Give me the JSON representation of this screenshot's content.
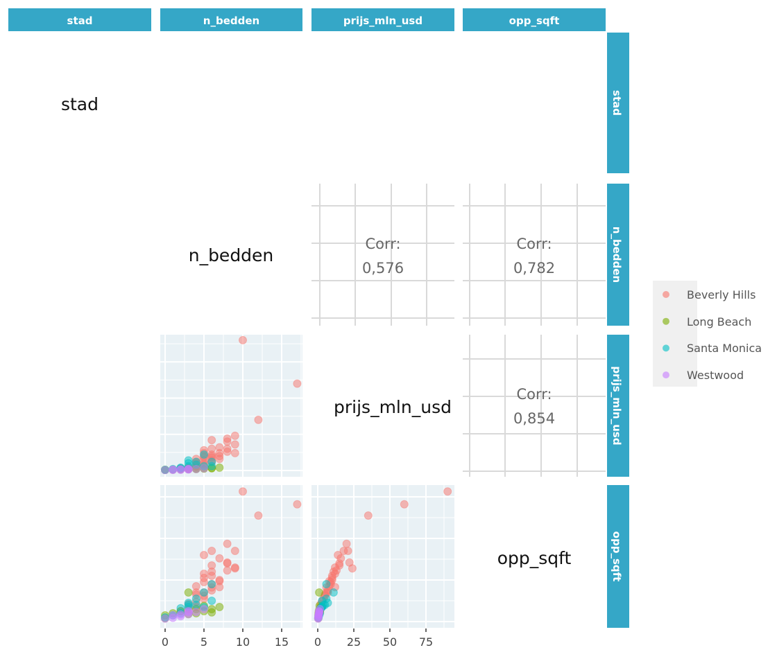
{
  "chart_data": {
    "type": "scatter",
    "layout": "pairs-matrix",
    "variables": [
      "stad",
      "n_bedden",
      "prijs_mln_usd",
      "opp_sqft"
    ],
    "diagonal_labels": [
      "stad",
      "n_bedden",
      "prijs_mln_usd",
      "opp_sqft"
    ],
    "correlations": [
      {
        "x": "prijs_mln_usd",
        "y": "n_bedden",
        "label": "Corr:",
        "value": "0,576"
      },
      {
        "x": "opp_sqft",
        "y": "n_bedden",
        "label": "Corr:",
        "value": "0,782"
      },
      {
        "x": "opp_sqft",
        "y": "prijs_mln_usd",
        "label": "Corr:",
        "value": "0,854"
      }
    ],
    "x_tick_labels": {
      "n_bedden": [
        "0",
        "5",
        "10",
        "15"
      ],
      "prijs_mln_usd": [
        "0",
        "25",
        "50",
        "75"
      ]
    },
    "grid": true,
    "legend": {
      "position": "right",
      "entries": [
        "Beverly Hills",
        "Long Beach",
        "Santa Monica",
        "Westwood"
      ]
    },
    "colors": {
      "Beverly Hills": "#F8766D",
      "Long Beach": "#7CAE00",
      "Santa Monica": "#00BFC4",
      "Westwood": "#C77CFF"
    },
    "point_fields": [
      "n_bedden",
      "prijs_mln_usd",
      "opp_sqft"
    ],
    "series": [
      {
        "name": "Beverly Hills",
        "points": [
          [
            10,
            90,
            31300
          ],
          [
            17,
            60,
            28200
          ],
          [
            12,
            35,
            25500
          ],
          [
            8,
            20,
            18700
          ],
          [
            6,
            21,
            17000
          ],
          [
            5,
            14,
            16000
          ],
          [
            9,
            18,
            17000
          ],
          [
            7,
            16,
            15200
          ],
          [
            8,
            22,
            14200
          ],
          [
            9,
            24,
            12800
          ],
          [
            8,
            13,
            12300
          ],
          [
            5,
            12,
            11500
          ],
          [
            6,
            11,
            12000
          ],
          [
            5,
            9,
            9500
          ],
          [
            6,
            10,
            11000
          ],
          [
            7,
            8,
            9700
          ],
          [
            4,
            8,
            8500
          ],
          [
            6,
            6,
            8200
          ],
          [
            7,
            12,
            8300
          ],
          [
            5,
            7,
            7000
          ],
          [
            4,
            5,
            6500
          ],
          [
            6,
            7,
            7500
          ],
          [
            4,
            6,
            7000
          ],
          [
            5,
            4,
            5500
          ],
          [
            3,
            2,
            4200
          ],
          [
            4,
            3,
            4800
          ],
          [
            5,
            5,
            6200
          ],
          [
            6,
            9,
            9000
          ],
          [
            7,
            10,
            10000
          ],
          [
            2,
            1.5,
            2500
          ],
          [
            3,
            1.8,
            3000
          ],
          [
            4,
            2.5,
            3500
          ],
          [
            8,
            15,
            14000
          ],
          [
            9,
            12,
            13000
          ],
          [
            6,
            15,
            13500
          ],
          [
            5,
            10,
            10500
          ]
        ]
      },
      {
        "name": "Long Beach",
        "points": [
          [
            0,
            0.5,
            1500
          ],
          [
            1,
            0.6,
            2000
          ],
          [
            2,
            0.8,
            2500
          ],
          [
            3,
            1,
            7000
          ],
          [
            4,
            1.2,
            3000
          ],
          [
            5,
            1.5,
            2500
          ],
          [
            6,
            1.8,
            3000
          ],
          [
            7,
            2,
            3500
          ],
          [
            0,
            0.4,
            800
          ],
          [
            3,
            0.9,
            1800
          ],
          [
            4,
            1,
            2000
          ],
          [
            5,
            1.3,
            3800
          ],
          [
            6,
            1.5,
            2200
          ]
        ]
      },
      {
        "name": "Santa Monica",
        "points": [
          [
            1,
            1,
            1500
          ],
          [
            2,
            2,
            3200
          ],
          [
            3,
            7,
            4500
          ],
          [
            4,
            4,
            4000
          ],
          [
            5,
            11,
            7000
          ],
          [
            6,
            6,
            9000
          ],
          [
            6,
            3,
            5000
          ],
          [
            5,
            3,
            3500
          ],
          [
            2,
            1.5,
            2000
          ],
          [
            3,
            3,
            3500
          ],
          [
            4,
            6,
            5500
          ],
          [
            0,
            0.5,
            1000
          ],
          [
            3,
            5,
            4000
          ]
        ]
      },
      {
        "name": "Westwood",
        "points": [
          [
            0,
            0.3,
            700
          ],
          [
            1,
            0.4,
            900
          ],
          [
            2,
            0.5,
            1300
          ],
          [
            3,
            0.7,
            1800
          ],
          [
            4,
            1,
            2300
          ],
          [
            5,
            1.5,
            3000
          ],
          [
            1,
            0.6,
            1500
          ],
          [
            2,
            0.8,
            1700
          ],
          [
            3,
            0.9,
            2500
          ],
          [
            3,
            1.1,
            2200
          ]
        ]
      }
    ]
  },
  "strip_color": "#35A7C7"
}
